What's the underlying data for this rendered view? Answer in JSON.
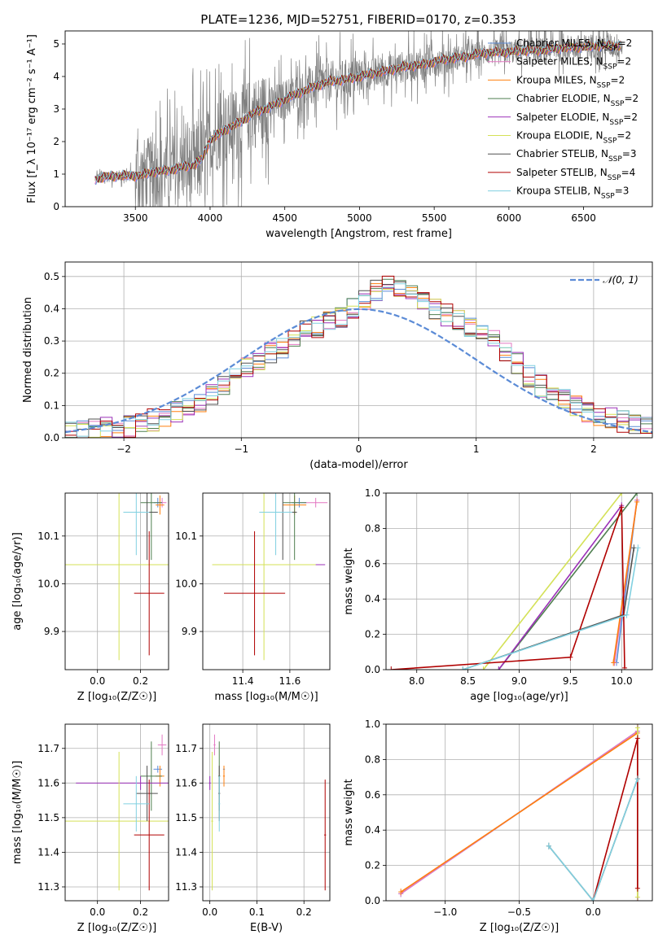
{
  "figure_title": "PLATE=1236, MJD=52751, FIBERID=0170, z=0.353",
  "colors": {
    "chabrier_miles": "#5b8bd6",
    "salpeter_miles": "#e377c2",
    "kroupa_miles": "#ff7f0e",
    "chabrier_elodie": "#4f7f50",
    "salpeter_elodie": "#9b30b8",
    "kroupa_elodie": "#d4e157",
    "chabrier_stelib": "#505050",
    "salpeter_stelib": "#b00000",
    "kroupa_stelib": "#80d0e0",
    "data": "#808080",
    "normal": "#5b8bd6"
  },
  "chart_data": [
    {
      "id": "spectrum",
      "type": "line",
      "title": "PLATE=1236, MJD=52751, FIBERID=0170, z=0.353",
      "xlabel": "wavelength [Angstrom, rest frame]",
      "ylabel": "Flux [f_λ 10⁻¹⁷ erg cm⁻² s⁻¹ A⁻¹]",
      "xlim": [
        3030,
        6960
      ],
      "ylim": [
        0,
        5.4
      ],
      "xticks": [
        3500,
        4000,
        4500,
        5000,
        5500,
        6000,
        6500
      ],
      "yticks": [
        0,
        1,
        2,
        3,
        4,
        5
      ],
      "grid": false,
      "legend_position": "right",
      "legend": [
        "Chabrier MILES, N_SSP=2",
        "Salpeter MILES, N_SSP=2",
        "Kroupa MILES, N_SSP=2",
        "Chabrier ELODIE, N_SSP=2",
        "Salpeter ELODIE, N_SSP=2",
        "Kroupa ELODIE, N_SSP=2",
        "Chabrier STELIB, N_SSP=3",
        "Salpeter STELIB, N_SSP=4",
        "Kroupa STELIB, N_SSP=3"
      ],
      "model_continuum": {
        "x": [
          3230,
          3300,
          3400,
          3500,
          3550,
          3600,
          3700,
          3800,
          3900,
          3950,
          4000,
          4100,
          4200,
          4300,
          4400,
          4500,
          4600,
          4700,
          4800,
          4900,
          5000,
          5100,
          5200,
          5300,
          5400,
          5500,
          5600,
          5700,
          5800,
          5900,
          6000,
          6100,
          6200,
          6300,
          6400,
          6500,
          6600,
          6700,
          6750
        ],
        "y": [
          0.85,
          0.92,
          0.95,
          0.95,
          0.98,
          1.05,
          1.1,
          1.2,
          1.3,
          1.5,
          2.05,
          2.35,
          2.6,
          2.9,
          3.05,
          3.3,
          3.5,
          3.7,
          3.85,
          3.9,
          4.0,
          4.1,
          4.2,
          4.3,
          4.35,
          4.45,
          4.55,
          4.6,
          4.7,
          4.75,
          4.75,
          4.8,
          4.8,
          4.85,
          4.9,
          4.9,
          4.95,
          4.95,
          4.95
        ]
      }
    },
    {
      "id": "residuals",
      "type": "area",
      "xlabel": "(data-model)/error",
      "ylabel": "Normed distribution",
      "xlim": [
        -2.5,
        2.5
      ],
      "ylim": [
        0,
        0.545
      ],
      "xticks": [
        -2,
        -1,
        0,
        1,
        2
      ],
      "yticks": [
        0.0,
        0.1,
        0.2,
        0.3,
        0.4,
        0.5
      ],
      "grid": true,
      "legend_position": "upper right",
      "legend": [
        "𝒩(0, 1)"
      ],
      "bin_width": 0.1,
      "bin_start": -2.5,
      "histogram_values": [
        0.015,
        0.02,
        0.025,
        0.03,
        0.03,
        0.035,
        0.045,
        0.055,
        0.065,
        0.08,
        0.095,
        0.11,
        0.13,
        0.16,
        0.2,
        0.22,
        0.24,
        0.26,
        0.28,
        0.3,
        0.33,
        0.34,
        0.36,
        0.37,
        0.4,
        0.43,
        0.46,
        0.48,
        0.47,
        0.45,
        0.42,
        0.4,
        0.38,
        0.36,
        0.34,
        0.32,
        0.3,
        0.27,
        0.23,
        0.19,
        0.16,
        0.14,
        0.12,
        0.1,
        0.08,
        0.07,
        0.06,
        0.05,
        0.04,
        0.03
      ]
    },
    {
      "id": "age_vs_Z",
      "type": "scatter",
      "xlabel": "Z [log₁₀(Z/Z☉)]",
      "ylabel": "age  [log₁₀(age/yr)]",
      "xlim": [
        -0.15,
        0.33
      ],
      "ylim": [
        9.82,
        10.19
      ],
      "xticks": [
        0.0,
        0.2
      ],
      "yticks": [
        9.9,
        10.0,
        10.1
      ],
      "grid": true
    },
    {
      "id": "age_vs_mass",
      "type": "scatter",
      "xlabel": "mass [log₁₀(M/M☉)]",
      "xlim": [
        11.23,
        11.77
      ],
      "ylim": [
        9.82,
        10.19
      ],
      "xticks": [
        11.4,
        11.6
      ],
      "yticks": [
        9.9,
        10.0,
        10.1
      ],
      "grid": true
    },
    {
      "id": "weight_vs_age",
      "type": "line",
      "xlabel": "age  [log₁₀(age/yr)]",
      "ylabel": "mass weight",
      "xlim": [
        7.7,
        10.3
      ],
      "ylim": [
        0,
        1.0
      ],
      "xticks": [
        8.0,
        8.5,
        9.0,
        9.5,
        10.0
      ],
      "yticks": [
        0.0,
        0.2,
        0.4,
        0.6,
        0.8,
        1.0
      ],
      "grid": true
    },
    {
      "id": "mass_vs_Z",
      "type": "scatter",
      "xlabel": "Z [log₁₀(Z/Z☉)]",
      "ylabel": "mass [log₁₀(M/M☉)]",
      "xlim": [
        -0.15,
        0.33
      ],
      "ylim": [
        11.26,
        11.77
      ],
      "xticks": [
        0.0,
        0.2
      ],
      "yticks": [
        11.3,
        11.4,
        11.5,
        11.6,
        11.7
      ],
      "grid": true
    },
    {
      "id": "mass_vs_ebv",
      "type": "scatter",
      "xlabel": "E(B-V)",
      "xlim": [
        -0.015,
        0.255
      ],
      "ylim": [
        11.26,
        11.77
      ],
      "xticks": [
        0.0,
        0.1,
        0.2
      ],
      "yticks": [
        11.3,
        11.4,
        11.5,
        11.6,
        11.7
      ],
      "grid": true
    },
    {
      "id": "weight_vs_Z",
      "type": "line",
      "xlabel": "Z [log₁₀(Z/Z☉)]",
      "ylabel": "mass weight",
      "xlim": [
        -1.4,
        0.4
      ],
      "ylim": [
        0,
        1.0
      ],
      "xticks": [
        -1.0,
        -0.5,
        0.0
      ],
      "yticks": [
        0.0,
        0.2,
        0.4,
        0.6,
        0.8,
        1.0
      ],
      "grid": true
    }
  ],
  "panel_data": {
    "series_keys": [
      "chabrier_miles",
      "salpeter_miles",
      "kroupa_miles",
      "chabrier_elodie",
      "salpeter_elodie",
      "kroupa_elodie",
      "chabrier_stelib",
      "salpeter_stelib",
      "kroupa_stelib"
    ],
    "Z": [
      0.28,
      0.3,
      0.29,
      0.25,
      0.2,
      0.1,
      0.23,
      0.24,
      0.18
    ],
    "Z_err": [
      0.02,
      0.02,
      0.02,
      0.05,
      0.3,
      0.4,
      0.05,
      0.07,
      0.06
    ],
    "age": [
      10.17,
      10.17,
      10.165,
      10.17,
      10.04,
      10.04,
      10.15,
      9.98,
      10.15
    ],
    "age_err": [
      0.01,
      0.01,
      0.02,
      0.12,
      0.0,
      0.2,
      0.1,
      0.13,
      0.09
    ],
    "mass": [
      11.64,
      11.71,
      11.62,
      11.62,
      11.6,
      11.49,
      11.57,
      11.45,
      11.54
    ],
    "mass_err": [
      0.01,
      0.03,
      0.03,
      0.1,
      0.02,
      0.2,
      0.08,
      0.16,
      0.08
    ],
    "mass_xerr": [
      0.03,
      0.05,
      0.05,
      0.05,
      0.15,
      0.22,
      0.06,
      0.13,
      0.07
    ],
    "ebv": [
      0.03,
      0.01,
      0.03,
      0.02,
      0.0,
      0.005,
      0.02,
      0.245,
      0.02
    ],
    "weight_age": [
      [
        [
          9.95,
          0.04
        ],
        [
          10.15,
          0.96
        ]
      ],
      [
        [
          9.93,
          0.04
        ],
        [
          10.15,
          0.96
        ]
      ],
      [
        [
          9.92,
          0.04
        ],
        [
          10.15,
          0.95
        ]
      ],
      [
        [
          8.8,
          0.0
        ],
        [
          10.15,
          1.0
        ]
      ],
      [
        [
          8.8,
          0.0
        ],
        [
          10.0,
          0.93
        ]
      ],
      [
        [
          8.65,
          0.0
        ],
        [
          10.0,
          1.0
        ]
      ],
      [
        [
          8.45,
          0.0
        ],
        [
          10.02,
          0.31
        ],
        [
          10.12,
          0.69
        ]
      ],
      [
        [
          7.75,
          0.0
        ],
        [
          9.5,
          0.07
        ],
        [
          10.0,
          0.92
        ],
        [
          10.03,
          0.01
        ]
      ],
      [
        [
          8.45,
          0.0
        ],
        [
          10.05,
          0.31
        ],
        [
          10.16,
          0.69
        ]
      ]
    ],
    "weight_Z": [
      [
        [
          -1.3,
          0.04
        ],
        [
          0.3,
          0.96
        ]
      ],
      [
        [
          -1.3,
          0.04
        ],
        [
          0.3,
          0.96
        ]
      ],
      [
        [
          -1.3,
          0.05
        ],
        [
          0.3,
          0.95
        ]
      ],
      [
        [
          0.3,
          0.0
        ],
        [
          0.3,
          1.0
        ]
      ],
      [
        [
          0.3,
          0.0
        ],
        [
          0.3,
          1.0
        ]
      ],
      [
        [
          0.3,
          0.02
        ],
        [
          0.3,
          0.98
        ]
      ],
      [
        [
          -0.3,
          0.31
        ],
        [
          0.0,
          0.0
        ],
        [
          0.3,
          0.69
        ]
      ],
      [
        [
          0.0,
          0.0
        ],
        [
          0.3,
          0.92
        ],
        [
          0.3,
          0.07
        ]
      ],
      [
        [
          -0.3,
          0.31
        ],
        [
          0.0,
          0.0
        ],
        [
          0.3,
          0.69
        ]
      ]
    ]
  }
}
